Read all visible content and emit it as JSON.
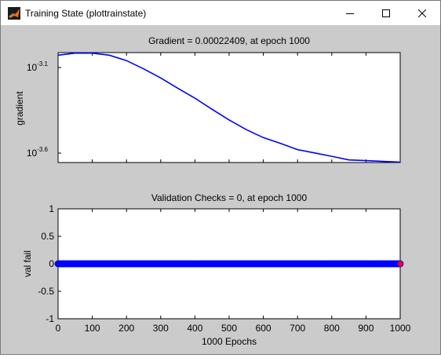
{
  "window": {
    "title": "Training State (plottrainstate)",
    "controls": [
      "minimize",
      "maximize",
      "close"
    ]
  },
  "colors": {
    "background": "#cbcbcb",
    "axes_bg": "#ffffff",
    "line": "#0000ff",
    "marker": "#0000ff",
    "end_marker": "#ff0000"
  },
  "chart_data": [
    {
      "type": "line",
      "title": "Gradient = 0.00022409, at epoch 1000",
      "xlabel": "",
      "ylabel": "gradient",
      "yscale": "log",
      "xlim": [
        0,
        1000
      ],
      "ylim": [
        0.000223,
        0.000825
      ],
      "ytick_labels": [
        {
          "base": "10",
          "exp": "-3.1",
          "value": 0.000794
        },
        {
          "base": "10",
          "exp": "-3.6",
          "value": 0.000251
        }
      ],
      "series": [
        {
          "x": [
            0,
            50,
            100,
            150,
            200,
            250,
            300,
            350,
            400,
            450,
            500,
            550,
            600,
            650,
            700,
            750,
            800,
            850,
            900,
            950,
            1000
          ],
          "y": [
            0.0008,
            0.00082,
            0.00082,
            0.0008,
            0.00075,
            0.00068,
            0.00061,
            0.00054,
            0.00048,
            0.00042,
            0.00037,
            0.00033,
            0.0003,
            0.00028,
            0.00026,
            0.00025,
            0.00024,
            0.00023,
            0.000228,
            0.000226,
            0.00022409
          ]
        }
      ]
    },
    {
      "type": "line",
      "title": "Validation Checks = 0, at epoch 1000",
      "xlabel": "1000 Epochs",
      "ylabel": "val fail",
      "xlim": [
        0,
        1000
      ],
      "ylim": [
        -1,
        1
      ],
      "xticks": [
        "0",
        "100",
        "200",
        "300",
        "400",
        "500",
        "600",
        "700",
        "800",
        "900",
        "1000"
      ],
      "yticks": [
        "1",
        "0.5",
        "0",
        "-0.5",
        "-1"
      ],
      "series": [
        {
          "x_range": [
            0,
            1000
          ],
          "value": 0
        }
      ],
      "end_point": {
        "x": 1000,
        "y": 0
      }
    }
  ]
}
